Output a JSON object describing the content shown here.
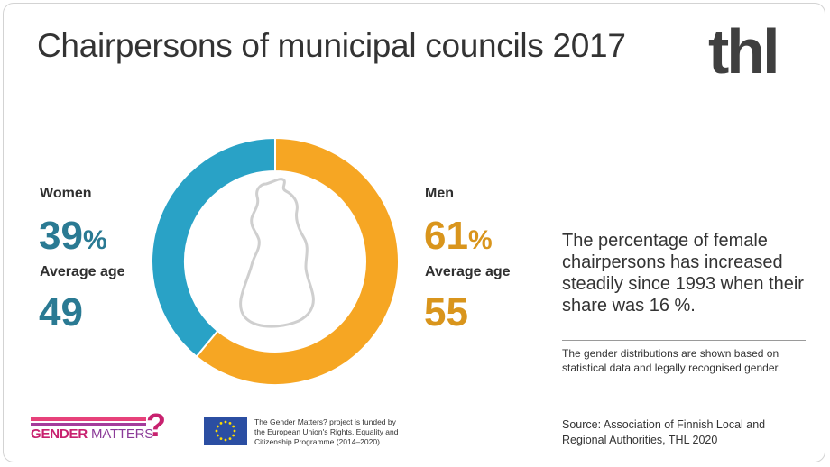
{
  "title": "Chairpersons of municipal councils 2017",
  "logo": "thl",
  "chart_data": {
    "type": "pie",
    "title": "Chairpersons of municipal councils 2017",
    "categories": [
      "Women",
      "Men"
    ],
    "values": [
      39,
      61
    ],
    "unit": "%",
    "colors": [
      "#29a2c6",
      "#f6a623"
    ],
    "donut": true,
    "center_graphic": "map-of-finland-outline"
  },
  "women": {
    "label": "Women",
    "percent": "39",
    "unit": "%",
    "age_label": "Average age",
    "age": "49"
  },
  "men": {
    "label": "Men",
    "percent": "61",
    "unit": "%",
    "age_label": "Average age",
    "age": "55"
  },
  "note": "The percentage of female chairpersons has increased steadily since 1993 when their share was 16 %.",
  "footnote": "The gender distributions are shown based on statistical data and legally recognised gender.",
  "source": "Source:  Association of Finnish Local and Regional Authorities, THL 2020",
  "gender_matters": {
    "part1": "GENDER",
    "part2": "MATTERS",
    "mark": "?"
  },
  "eu_funding_text": "The Gender Matters? project is funded by the European Union's Rights, Equality and Citizenship Programme (2014–2020)"
}
